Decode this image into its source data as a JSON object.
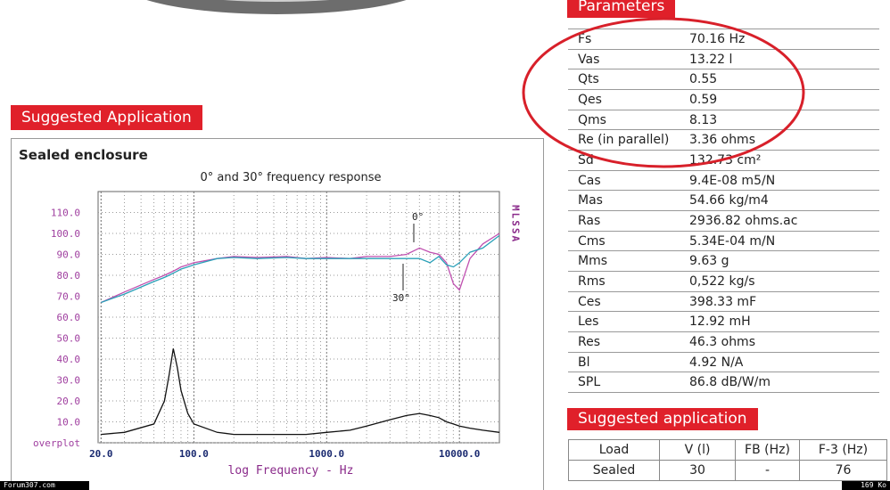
{
  "application_banner": "Suggested Application",
  "panel_title": "Sealed enclosure",
  "chart_data": {
    "type": "line",
    "title": "0° and 30° frequency response",
    "x_label": "log Frequency - Hz",
    "side_label": "MLSSA",
    "log_x": true,
    "grid": true,
    "x": [
      20,
      30,
      50,
      60,
      65,
      70,
      75,
      80,
      90,
      100,
      150,
      200,
      300,
      500,
      700,
      1000,
      1500,
      2000,
      3000,
      4000,
      5000,
      6000,
      7000,
      8000,
      9000,
      10000,
      12000,
      15000,
      20000
    ],
    "series": [
      {
        "name": "0°",
        "color": "#c050b0",
        "values": [
          67,
          72,
          78,
          80,
          81,
          82,
          83,
          84,
          85,
          86,
          88,
          89,
          88.5,
          89,
          88,
          88.5,
          88,
          89,
          89,
          90,
          93,
          91,
          90,
          86,
          76,
          73,
          88,
          95,
          100
        ]
      },
      {
        "name": "30°",
        "color": "#2aa0b8",
        "values": [
          67,
          71,
          77,
          79,
          80,
          81,
          82,
          83,
          84,
          85,
          88,
          88.5,
          88,
          88.5,
          88,
          88,
          88,
          88,
          88,
          88,
          88,
          86,
          89,
          85,
          84,
          86,
          91,
          93,
          99
        ]
      },
      {
        "color": "#111111",
        "values": [
          4,
          5,
          9,
          20,
          32,
          45,
          36,
          25,
          14,
          9,
          5,
          4,
          4,
          4,
          4,
          5,
          6,
          8,
          11,
          13,
          14,
          13,
          12,
          10,
          9,
          8,
          7,
          6,
          5
        ]
      }
    ],
    "xlim": [
      19,
      20000
    ],
    "xticks": [
      {
        "value": 20,
        "label": "20.0"
      },
      {
        "value": 100,
        "label": "100.0"
      },
      {
        "value": 1000,
        "label": "1000.0"
      },
      {
        "value": 10000,
        "label": "10000.0"
      }
    ],
    "ylim": [
      0,
      120
    ],
    "yticks": [
      {
        "value": 0,
        "label": "overplot"
      },
      {
        "value": 10,
        "label": "10.0"
      },
      {
        "value": 20,
        "label": "20.0"
      },
      {
        "value": 30,
        "label": "30.0"
      },
      {
        "value": 40,
        "label": "40.0"
      },
      {
        "value": 50,
        "label": "50.0"
      },
      {
        "value": 60,
        "label": "60.0"
      },
      {
        "value": 70,
        "label": "70.0"
      },
      {
        "value": 80,
        "label": "80.0"
      },
      {
        "value": 90,
        "label": "90.0"
      },
      {
        "value": 100,
        "label": "100.0"
      },
      {
        "value": 110,
        "label": "110.0"
      }
    ]
  },
  "parameters": {
    "title": "Parameters",
    "rows": [
      [
        "Fs",
        "70.16 Hz"
      ],
      [
        "Vas",
        "13.22 l"
      ],
      [
        "Qts",
        "0.55"
      ],
      [
        "Qes",
        "0.59"
      ],
      [
        "Qms",
        "8.13"
      ],
      [
        "Re (in parallel)",
        "3.36 ohms"
      ],
      [
        "Sd",
        "132.73 cm²"
      ],
      [
        "Cas",
        "9.4E-08 m5/N"
      ],
      [
        "Mas",
        "54.66 kg/m4"
      ],
      [
        "Ras",
        "2936.82 ohms.ac"
      ],
      [
        "Cms",
        "5.34E-04 m/N"
      ],
      [
        "Mms",
        "9.63 g"
      ],
      [
        "Rms",
        "0,522 kg/s"
      ],
      [
        "Ces",
        "398.33 mF"
      ],
      [
        "Les",
        "12.92 mH"
      ],
      [
        "Res",
        "46.3 ohms"
      ],
      [
        "Bl",
        "4.92 N/A"
      ],
      [
        "SPL",
        "86.8 dB/W/m"
      ]
    ]
  },
  "application": {
    "title": "Suggested application",
    "header": [
      "Load",
      "V (l)",
      "FB (Hz)",
      "F-3 (Hz)"
    ],
    "rows": [
      [
        "Sealed",
        "30",
        "-",
        "76"
      ]
    ]
  },
  "footer": {
    "left": "Forum307.com",
    "right": "169 Ko"
  }
}
